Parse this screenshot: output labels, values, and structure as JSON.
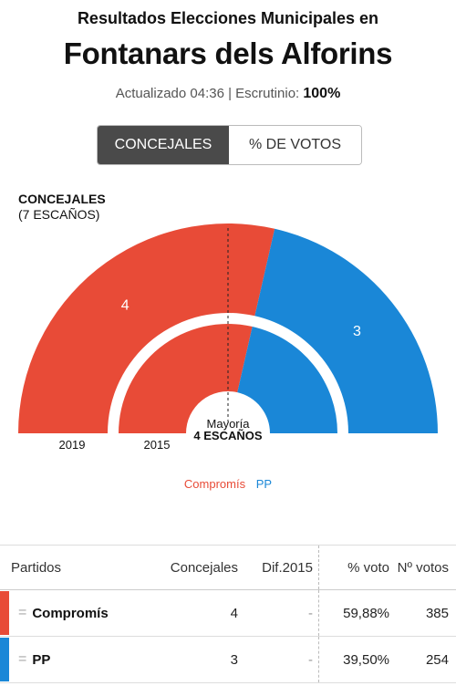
{
  "header": {
    "subtitle": "Resultados Elecciones Municipales en",
    "title": "Fontanars dels Alforins",
    "updated_prefix": "Actualizado 04:36 | Escrutinio: ",
    "scrutiny": "100%"
  },
  "tabs": [
    {
      "label": "CONCEJALES",
      "active": true
    },
    {
      "label": "% DE VOTOS",
      "active": false
    }
  ],
  "seats": {
    "title": "CONCEJALES",
    "subtitle": "(7 ESCAÑOS)",
    "majority_label": "Mayoría",
    "majority_value": "4 ESCAÑOS",
    "total": 7,
    "outer": {
      "label": "2019",
      "parties": [
        {
          "name": "Compromís",
          "seats": 4
        },
        {
          "name": "PP",
          "seats": 3
        }
      ]
    },
    "inner": {
      "label": "2015",
      "parties": [
        {
          "name": "Compromís",
          "seats": 4
        },
        {
          "name": "PP",
          "seats": 3
        }
      ]
    }
  },
  "colors": {
    "Compromís": "#e84b37",
    "PP": "#1a87d7"
  },
  "legend": [
    "Compromís",
    "PP"
  ],
  "table": {
    "headers": [
      "Partidos",
      "Concejales",
      "Dif.2015",
      "% voto",
      "Nº votos"
    ],
    "rows": [
      {
        "eq": "=",
        "party": "Compromís",
        "concejales": "4",
        "dif": "-",
        "voto": "59,88%",
        "votos": "385"
      },
      {
        "eq": "=",
        "party": "PP",
        "concejales": "3",
        "dif": "-",
        "voto": "39,50%",
        "votos": "254"
      }
    ]
  }
}
